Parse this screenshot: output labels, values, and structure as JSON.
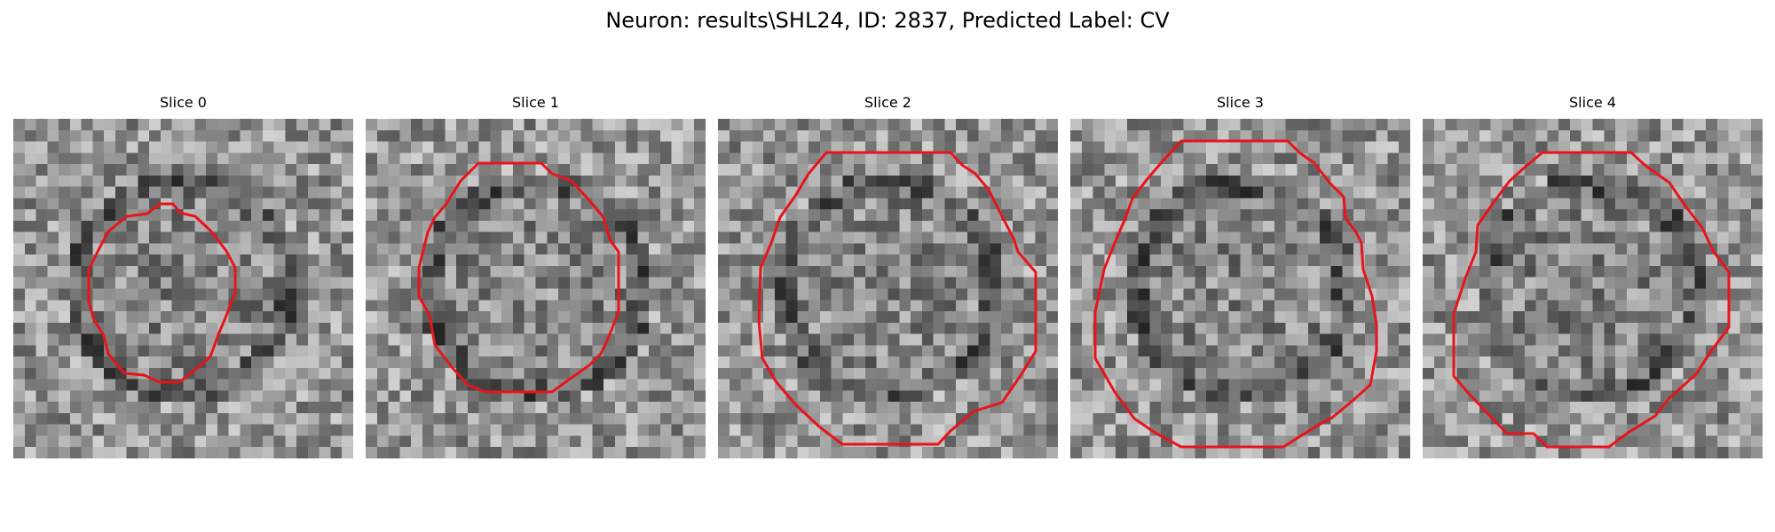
{
  "figure": {
    "title": "Neuron: results\\SHL24, ID: 2837, Predicted Label: CV"
  },
  "panels": [
    {
      "title": "Slice 0"
    },
    {
      "title": "Slice 1"
    },
    {
      "title": "Slice 2"
    },
    {
      "title": "Slice 3"
    },
    {
      "title": "Slice 4"
    }
  ],
  "colors": {
    "outline": "#e8141b",
    "background": "#ffffff"
  }
}
